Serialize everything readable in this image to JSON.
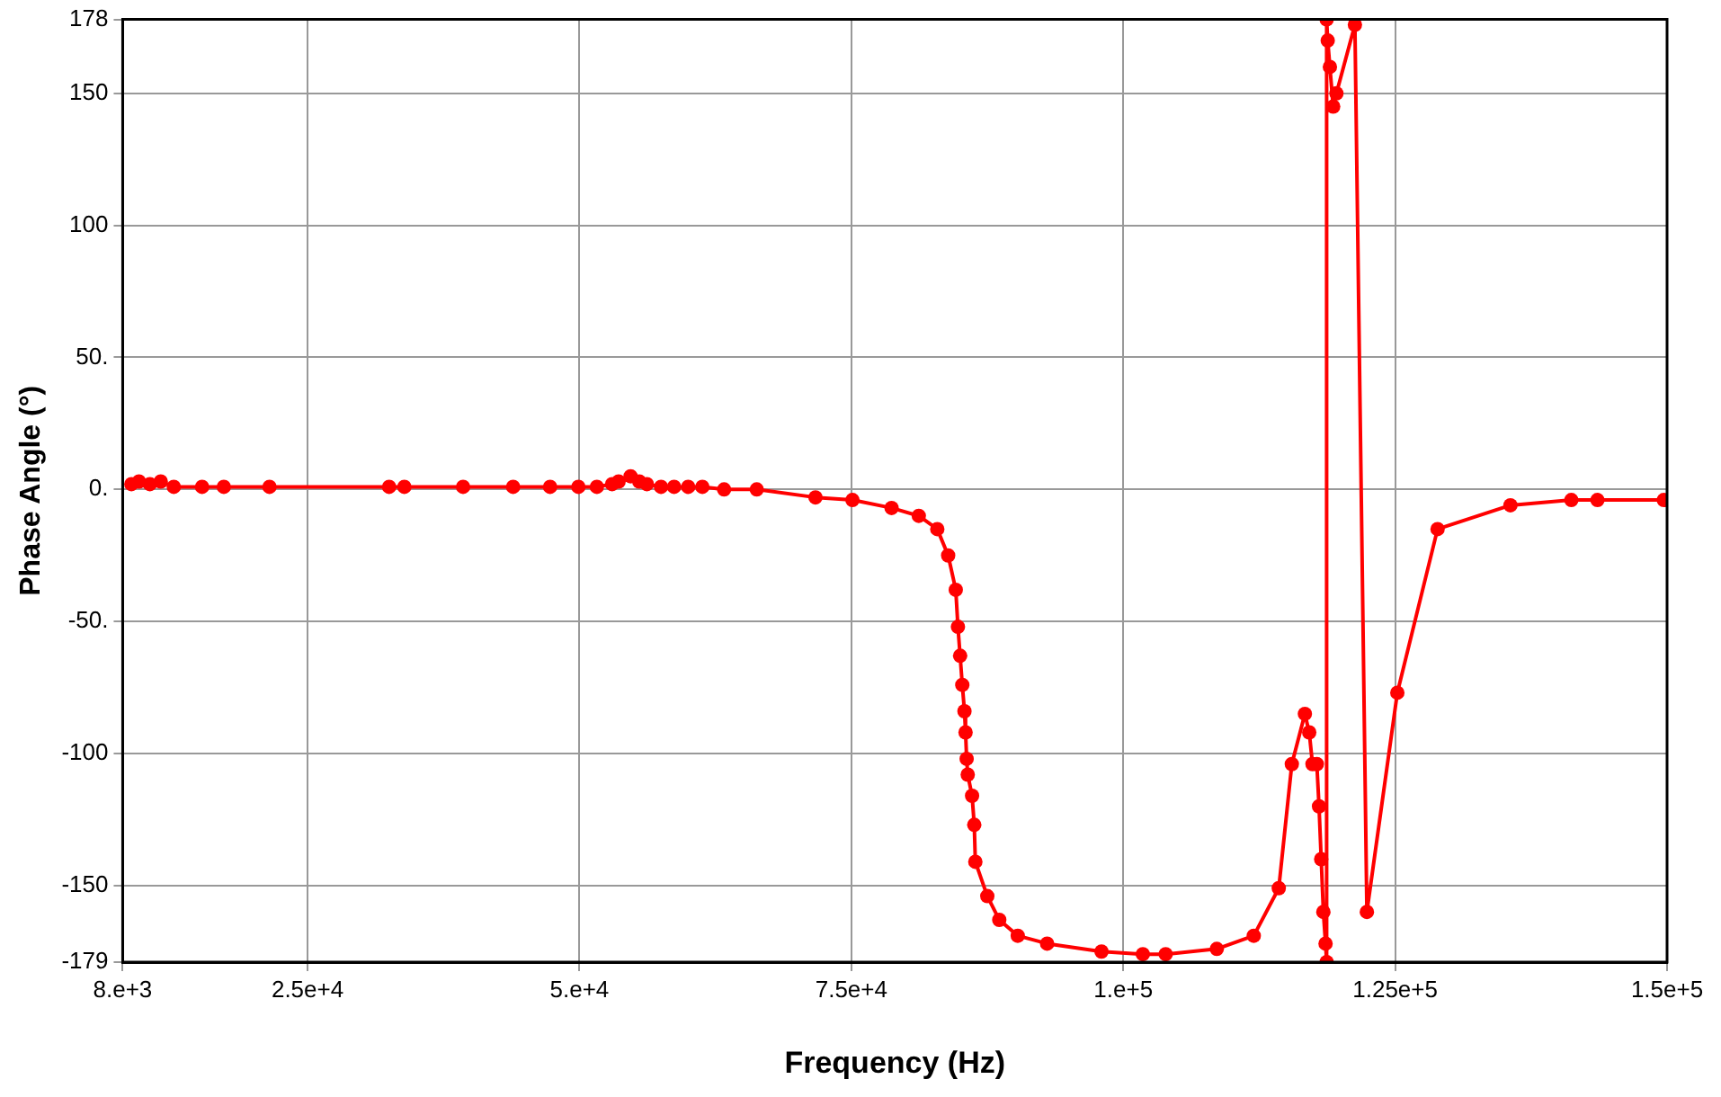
{
  "chart_data": {
    "type": "line",
    "xlabel": "Frequency (Hz)",
    "ylabel": "Phase Angle (°)",
    "xlim": [
      8000,
      150000
    ],
    "xticks": [
      {
        "value": 8000,
        "label": "8.e+3"
      },
      {
        "value": 25000,
        "label": "2.5e+4"
      },
      {
        "value": 50000,
        "label": "5.e+4"
      },
      {
        "value": 75000,
        "label": "7.5e+4"
      },
      {
        "value": 100000,
        "label": "1.e+5"
      },
      {
        "value": 125000,
        "label": "1.25e+5"
      },
      {
        "value": 150000,
        "label": "1.5e+5"
      }
    ],
    "ylim": [
      -179,
      178
    ],
    "yticks": [
      -179,
      -150,
      -100,
      {
        "value": -50,
        "label": "-50."
      },
      {
        "value": 0,
        "label": "0."
      },
      {
        "value": 50,
        "label": "50."
      },
      100,
      150,
      178
    ],
    "grid": true,
    "legend": false,
    "marker": "circle",
    "line_style": "solid",
    "series": [
      {
        "color": "#ff0000",
        "x": [
          8800,
          9500,
          10500,
          11500,
          12700,
          15300,
          17300,
          21500,
          32500,
          33900,
          39300,
          43900,
          47300,
          49900,
          51600,
          53000,
          53600,
          54700,
          55500,
          56200,
          57500,
          58700,
          60000,
          61300,
          63300,
          66300,
          71700,
          75100,
          78700,
          81200,
          82900,
          83900,
          84600,
          84800,
          85000,
          85200,
          85400,
          85500,
          85600,
          85700,
          86100,
          86300,
          86400,
          87500,
          88600,
          90300,
          93000,
          98000,
          101800,
          103900,
          108600,
          112000,
          114300,
          115500,
          116700,
          117100,
          117400,
          117800,
          118000,
          118200,
          118400,
          118600,
          118700,
          118700,
          118800,
          119000,
          119300,
          119600,
          121300,
          122400,
          125200,
          128900,
          135600,
          141200,
          143600,
          149700
        ],
        "values": [
          2,
          3,
          2,
          3,
          1,
          1,
          1,
          1,
          1,
          1,
          1,
          1,
          1,
          1,
          1,
          2,
          3,
          5,
          3,
          2,
          1,
          1,
          1,
          1,
          0,
          0,
          -3,
          -4,
          -7,
          -10,
          -15,
          -25,
          -38,
          -52,
          -63,
          -74,
          -84,
          -92,
          -102,
          -108,
          -116,
          -127,
          -141,
          -154,
          -163,
          -169,
          -172,
          -175,
          -176,
          -176,
          -174,
          -169,
          -151,
          -104,
          -85,
          -92,
          -104,
          -104,
          -120,
          -140,
          -160,
          -172,
          -179,
          178,
          170,
          160,
          145,
          150,
          176,
          -160,
          -77,
          -15,
          -6,
          -4,
          -4,
          -4
        ]
      }
    ]
  }
}
